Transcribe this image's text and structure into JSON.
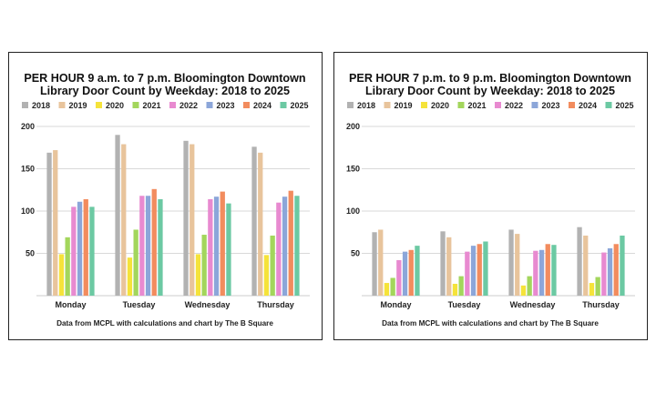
{
  "chart_data": [
    {
      "type": "bar",
      "title_lines": [
        "PER HOUR 9 a.m. to 7 p.m. Bloomington Downtown",
        "Library Door Count by Weekday: 2018 to 2025"
      ],
      "footnote": "Data from MCPL with calculations and chart by The B Square",
      "categories": [
        "Monday",
        "Tuesday",
        "Wednesday",
        "Thursday"
      ],
      "ylim": [
        0,
        200
      ],
      "yticks": [
        "50",
        "100",
        "150",
        "200"
      ],
      "legend_position": "top",
      "grid": "horizontal",
      "series": [
        {
          "name": "2018",
          "color": "#b2b2b2",
          "values": [
            169,
            190,
            183,
            176
          ]
        },
        {
          "name": "2019",
          "color": "#e8c49c",
          "values": [
            172,
            179,
            179,
            169
          ]
        },
        {
          "name": "2020",
          "color": "#f5e33a",
          "values": [
            49,
            45,
            49,
            48
          ]
        },
        {
          "name": "2021",
          "color": "#a3d65c",
          "values": [
            69,
            78,
            72,
            71
          ]
        },
        {
          "name": "2022",
          "color": "#e88ad0",
          "values": [
            105,
            118,
            114,
            110
          ]
        },
        {
          "name": "2023",
          "color": "#8ca6d9",
          "values": [
            111,
            118,
            117,
            117
          ]
        },
        {
          "name": "2024",
          "color": "#f28c5e",
          "values": [
            114,
            126,
            123,
            124
          ]
        },
        {
          "name": "2025",
          "color": "#6cc9a3",
          "values": [
            105,
            114,
            109,
            118
          ]
        }
      ]
    },
    {
      "type": "bar",
      "title_lines": [
        "PER HOUR 7 p.m. to 9 p.m. Bloomington Downtown",
        "Library Door Count by Weekday: 2018 to 2025"
      ],
      "footnote": "Data from MCPL with calculations and chart by The B Square",
      "categories": [
        "Monday",
        "Tuesday",
        "Wednesday",
        "Thursday"
      ],
      "ylim": [
        0,
        200
      ],
      "yticks": [
        "50",
        "100",
        "150",
        "200"
      ],
      "legend_position": "top",
      "grid": "horizontal",
      "series": [
        {
          "name": "2018",
          "color": "#b2b2b2",
          "values": [
            75,
            76,
            78,
            81
          ]
        },
        {
          "name": "2019",
          "color": "#e8c49c",
          "values": [
            78,
            69,
            73,
            71
          ]
        },
        {
          "name": "2020",
          "color": "#f5e33a",
          "values": [
            15,
            14,
            12,
            15
          ]
        },
        {
          "name": "2021",
          "color": "#a3d65c",
          "values": [
            21,
            23,
            23,
            22
          ]
        },
        {
          "name": "2022",
          "color": "#e88ad0",
          "values": [
            42,
            52,
            53,
            51
          ]
        },
        {
          "name": "2023",
          "color": "#8ca6d9",
          "values": [
            52,
            59,
            54,
            56
          ]
        },
        {
          "name": "2024",
          "color": "#f28c5e",
          "values": [
            54,
            61,
            61,
            61
          ]
        },
        {
          "name": "2025",
          "color": "#6cc9a3",
          "values": [
            59,
            64,
            60,
            71
          ]
        }
      ]
    }
  ]
}
